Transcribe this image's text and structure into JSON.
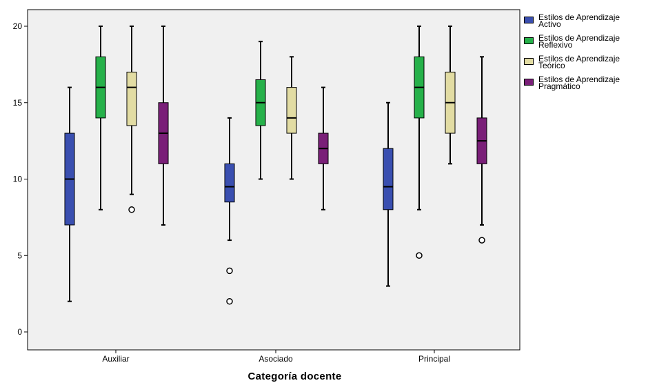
{
  "chart_data": {
    "type": "boxplot",
    "xlabel": "Categoría docente",
    "ylabel": "",
    "ylim": [
      -1,
      21
    ],
    "yticks": [
      0,
      5,
      10,
      15,
      20
    ],
    "grid": false,
    "legend_position": "right",
    "categories": [
      "Auxiliar",
      "Asociado",
      "Principal"
    ],
    "series": [
      {
        "name": "Estilos de Aprendizaje Activo",
        "color": "#3a4fb0",
        "boxes": [
          {
            "min": 2,
            "q1": 7,
            "median": 10,
            "q3": 13,
            "max": 16,
            "outliers": []
          },
          {
            "min": 6,
            "q1": 8.5,
            "median": 9.5,
            "q3": 11,
            "max": 14,
            "outliers": [
              4,
              2
            ]
          },
          {
            "min": 3,
            "q1": 8,
            "median": 9.5,
            "q3": 12,
            "max": 15,
            "outliers": []
          }
        ]
      },
      {
        "name": "Estilos de Aprendizaje Reflexivo",
        "color": "#26b14a",
        "boxes": [
          {
            "min": 8,
            "q1": 14,
            "median": 16,
            "q3": 18,
            "max": 20,
            "outliers": []
          },
          {
            "min": 10,
            "q1": 13.5,
            "median": 15,
            "q3": 16.5,
            "max": 19,
            "outliers": []
          },
          {
            "min": 8,
            "q1": 14,
            "median": 16,
            "q3": 18,
            "max": 20,
            "outliers": [
              5
            ]
          }
        ]
      },
      {
        "name": "Estilos de Aprendizaje Teórico",
        "color": "#e2dca3",
        "boxes": [
          {
            "min": 9,
            "q1": 13.5,
            "median": 16,
            "q3": 17,
            "max": 20,
            "outliers": [
              8
            ]
          },
          {
            "min": 10,
            "q1": 13,
            "median": 14,
            "q3": 16,
            "max": 18,
            "outliers": []
          },
          {
            "min": 11,
            "q1": 13,
            "median": 15,
            "q3": 17,
            "max": 20,
            "outliers": []
          }
        ]
      },
      {
        "name": "Estilos de Aprendizaje Pragmático",
        "color": "#7a1f78",
        "boxes": [
          {
            "min": 7,
            "q1": 11,
            "median": 13,
            "q3": 15,
            "max": 20,
            "outliers": []
          },
          {
            "min": 8,
            "q1": 11,
            "median": 12,
            "q3": 13,
            "max": 16,
            "outliers": []
          },
          {
            "min": 7,
            "q1": 11,
            "median": 12.5,
            "q3": 14,
            "max": 18,
            "outliers": [
              6
            ]
          }
        ]
      }
    ]
  },
  "legend": {
    "items": [
      {
        "label": "Estilos de Aprendizaje\nActivo",
        "color": "#3a4fb0"
      },
      {
        "label": "Estilos de Aprendizaje\nReflexivo",
        "color": "#26b14a"
      },
      {
        "label": "Estilos de Aprendizaje\nTeórico",
        "color": "#e2dca3"
      },
      {
        "label": "Estilos de Aprendizaje\nPragmático",
        "color": "#7a1f78"
      }
    ]
  },
  "colors": {
    "plot_background": "#f0f0f0",
    "frame": "#000000"
  }
}
